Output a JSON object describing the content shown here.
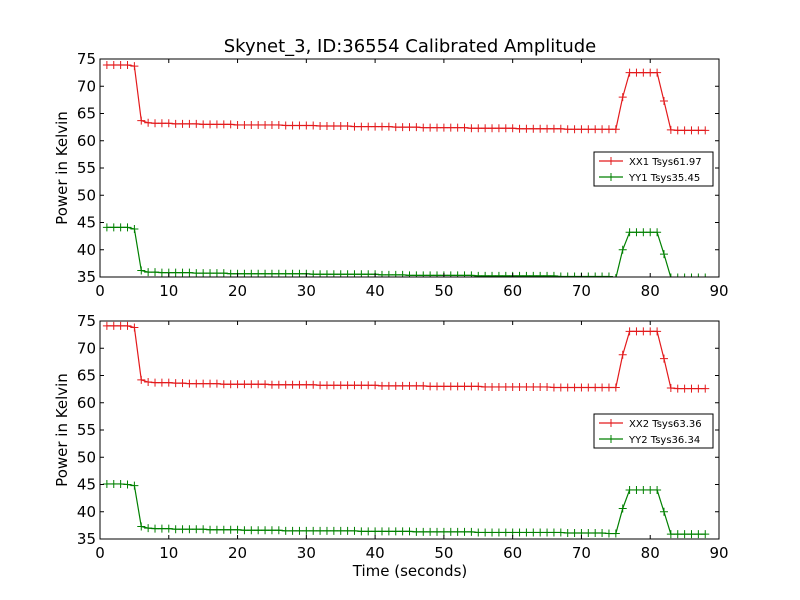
{
  "chart_data": [
    {
      "type": "line",
      "title": "Skynet_3, ID:36554 Calibrated Amplitude",
      "ylabel": "Power in Kelvin",
      "xlabel": "",
      "xlim": [
        0,
        90
      ],
      "ylim": [
        35,
        75
      ],
      "xticks": [
        "0",
        "10",
        "20",
        "30",
        "40",
        "50",
        "60",
        "70",
        "80",
        "90"
      ],
      "yticks": [
        "35",
        "40",
        "45",
        "50",
        "55",
        "60",
        "65",
        "70",
        "75"
      ],
      "legend_position": "center-right",
      "series": [
        {
          "name": "XX1 Tsys61.97",
          "color": "#e31a1c",
          "x": [
            1,
            2,
            3,
            4,
            5,
            6,
            7,
            8,
            9,
            10,
            11,
            12,
            13,
            14,
            15,
            16,
            17,
            18,
            19,
            20,
            21,
            22,
            23,
            24,
            25,
            26,
            27,
            28,
            29,
            30,
            31,
            32,
            33,
            34,
            35,
            36,
            37,
            38,
            39,
            40,
            41,
            42,
            43,
            44,
            45,
            46,
            47,
            48,
            49,
            50,
            51,
            52,
            53,
            54,
            55,
            56,
            57,
            58,
            59,
            60,
            61,
            62,
            63,
            64,
            65,
            66,
            67,
            68,
            69,
            70,
            71,
            72,
            73,
            74,
            75,
            76,
            77,
            78,
            79,
            80,
            81,
            82,
            83,
            84,
            85,
            86,
            87,
            88
          ],
          "y": [
            73.9,
            73.9,
            73.9,
            73.9,
            73.7,
            63.7,
            63.3,
            63.2,
            63.2,
            63.2,
            63.1,
            63.1,
            63.1,
            63.1,
            63.0,
            63.0,
            63.0,
            63.0,
            63.0,
            62.9,
            62.9,
            62.9,
            62.9,
            62.9,
            62.9,
            62.9,
            62.8,
            62.8,
            62.8,
            62.8,
            62.8,
            62.7,
            62.7,
            62.7,
            62.7,
            62.7,
            62.6,
            62.6,
            62.6,
            62.6,
            62.6,
            62.6,
            62.5,
            62.5,
            62.5,
            62.5,
            62.4,
            62.4,
            62.4,
            62.4,
            62.4,
            62.4,
            62.4,
            62.3,
            62.3,
            62.3,
            62.3,
            62.3,
            62.3,
            62.3,
            62.2,
            62.2,
            62.2,
            62.2,
            62.2,
            62.2,
            62.2,
            62.1,
            62.1,
            62.1,
            62.1,
            62.1,
            62.1,
            62.1,
            62.1,
            68.0,
            72.5,
            72.5,
            72.5,
            72.5,
            72.5,
            67.3,
            62.0,
            61.9,
            61.9,
            61.9,
            61.9,
            61.9
          ]
        },
        {
          "name": "YY1 Tsys35.45",
          "color": "#008000",
          "x": [
            1,
            2,
            3,
            4,
            5,
            6,
            7,
            8,
            9,
            10,
            11,
            12,
            13,
            14,
            15,
            16,
            17,
            18,
            19,
            20,
            21,
            22,
            23,
            24,
            25,
            26,
            27,
            28,
            29,
            30,
            31,
            32,
            33,
            34,
            35,
            36,
            37,
            38,
            39,
            40,
            41,
            42,
            43,
            44,
            45,
            46,
            47,
            48,
            49,
            50,
            51,
            52,
            53,
            54,
            55,
            56,
            57,
            58,
            59,
            60,
            61,
            62,
            63,
            64,
            65,
            66,
            67,
            68,
            69,
            70,
            71,
            72,
            73,
            74,
            75,
            76,
            77,
            78,
            79,
            80,
            81,
            82,
            83,
            84,
            85,
            86,
            87,
            88
          ],
          "y": [
            44.1,
            44.1,
            44.1,
            44.1,
            43.8,
            36.2,
            35.9,
            35.9,
            35.8,
            35.8,
            35.8,
            35.8,
            35.8,
            35.7,
            35.7,
            35.7,
            35.7,
            35.7,
            35.6,
            35.6,
            35.6,
            35.6,
            35.6,
            35.6,
            35.6,
            35.6,
            35.6,
            35.6,
            35.6,
            35.6,
            35.5,
            35.5,
            35.5,
            35.5,
            35.5,
            35.5,
            35.5,
            35.5,
            35.5,
            35.5,
            35.4,
            35.4,
            35.4,
            35.4,
            35.3,
            35.3,
            35.3,
            35.3,
            35.3,
            35.3,
            35.3,
            35.3,
            35.3,
            35.3,
            35.2,
            35.2,
            35.2,
            35.2,
            35.2,
            35.2,
            35.2,
            35.2,
            35.2,
            35.2,
            35.2,
            35.2,
            35.1,
            35.1,
            35.1,
            35.1,
            35.1,
            35.1,
            35.1,
            35.1,
            34.8,
            40.0,
            43.2,
            43.2,
            43.2,
            43.2,
            43.2,
            39.2,
            34.9,
            34.9,
            34.9,
            34.9,
            34.9,
            34.9
          ]
        }
      ]
    },
    {
      "type": "line",
      "title": "",
      "ylabel": "Power in Kelvin",
      "xlabel": "Time (seconds)",
      "xlim": [
        0,
        90
      ],
      "ylim": [
        35,
        75
      ],
      "xticks": [
        "0",
        "10",
        "20",
        "30",
        "40",
        "50",
        "60",
        "70",
        "80",
        "90"
      ],
      "yticks": [
        "35",
        "40",
        "45",
        "50",
        "55",
        "60",
        "65",
        "70",
        "75"
      ],
      "legend_position": "center-right",
      "series": [
        {
          "name": "XX2 Tsys63.36",
          "color": "#e31a1c",
          "x": [
            1,
            2,
            3,
            4,
            5,
            6,
            7,
            8,
            9,
            10,
            11,
            12,
            13,
            14,
            15,
            16,
            17,
            18,
            19,
            20,
            21,
            22,
            23,
            24,
            25,
            26,
            27,
            28,
            29,
            30,
            31,
            32,
            33,
            34,
            35,
            36,
            37,
            38,
            39,
            40,
            41,
            42,
            43,
            44,
            45,
            46,
            47,
            48,
            49,
            50,
            51,
            52,
            53,
            54,
            55,
            56,
            57,
            58,
            59,
            60,
            61,
            62,
            63,
            64,
            65,
            66,
            67,
            68,
            69,
            70,
            71,
            72,
            73,
            74,
            75,
            76,
            77,
            78,
            79,
            80,
            81,
            82,
            83,
            84,
            85,
            86,
            87,
            88
          ],
          "y": [
            74.1,
            74.1,
            74.1,
            74.1,
            73.8,
            64.2,
            63.8,
            63.7,
            63.7,
            63.7,
            63.6,
            63.6,
            63.5,
            63.5,
            63.5,
            63.5,
            63.5,
            63.4,
            63.4,
            63.4,
            63.4,
            63.4,
            63.4,
            63.4,
            63.3,
            63.3,
            63.3,
            63.3,
            63.3,
            63.3,
            63.3,
            63.2,
            63.2,
            63.2,
            63.2,
            63.2,
            63.2,
            63.2,
            63.2,
            63.2,
            63.1,
            63.1,
            63.1,
            63.1,
            63.1,
            63.1,
            63.1,
            63.0,
            63.0,
            63.0,
            63.0,
            63.0,
            63.0,
            63.0,
            63.0,
            62.9,
            62.9,
            62.9,
            62.9,
            62.9,
            62.9,
            62.9,
            62.9,
            62.9,
            62.9,
            62.8,
            62.8,
            62.8,
            62.8,
            62.8,
            62.8,
            62.8,
            62.8,
            62.8,
            62.8,
            68.8,
            73.1,
            73.1,
            73.1,
            73.1,
            73.1,
            68.1,
            62.7,
            62.6,
            62.6,
            62.6,
            62.6,
            62.6
          ]
        },
        {
          "name": "YY2 Tsys36.34",
          "color": "#008000",
          "x": [
            1,
            2,
            3,
            4,
            5,
            6,
            7,
            8,
            9,
            10,
            11,
            12,
            13,
            14,
            15,
            16,
            17,
            18,
            19,
            20,
            21,
            22,
            23,
            24,
            25,
            26,
            27,
            28,
            29,
            30,
            31,
            32,
            33,
            34,
            35,
            36,
            37,
            38,
            39,
            40,
            41,
            42,
            43,
            44,
            45,
            46,
            47,
            48,
            49,
            50,
            51,
            52,
            53,
            54,
            55,
            56,
            57,
            58,
            59,
            60,
            61,
            62,
            63,
            64,
            65,
            66,
            67,
            68,
            69,
            70,
            71,
            72,
            73,
            74,
            75,
            76,
            77,
            78,
            79,
            80,
            81,
            82,
            83,
            84,
            85,
            86,
            87,
            88
          ],
          "y": [
            45.1,
            45.1,
            45.1,
            45.0,
            44.8,
            37.3,
            37.0,
            36.9,
            36.9,
            36.9,
            36.8,
            36.8,
            36.8,
            36.8,
            36.8,
            36.7,
            36.7,
            36.7,
            36.7,
            36.7,
            36.6,
            36.6,
            36.6,
            36.6,
            36.6,
            36.6,
            36.5,
            36.5,
            36.5,
            36.5,
            36.5,
            36.5,
            36.5,
            36.5,
            36.5,
            36.5,
            36.5,
            36.4,
            36.4,
            36.4,
            36.4,
            36.4,
            36.4,
            36.4,
            36.4,
            36.3,
            36.3,
            36.3,
            36.3,
            36.3,
            36.3,
            36.3,
            36.3,
            36.3,
            36.2,
            36.2,
            36.2,
            36.2,
            36.2,
            36.2,
            36.2,
            36.2,
            36.2,
            36.2,
            36.2,
            36.2,
            36.2,
            36.1,
            36.1,
            36.1,
            36.1,
            36.1,
            36.1,
            36.0,
            36.0,
            40.6,
            44.0,
            44.0,
            44.0,
            44.0,
            44.0,
            40.0,
            35.9,
            35.9,
            35.9,
            35.9,
            35.9,
            35.9
          ]
        }
      ]
    }
  ]
}
